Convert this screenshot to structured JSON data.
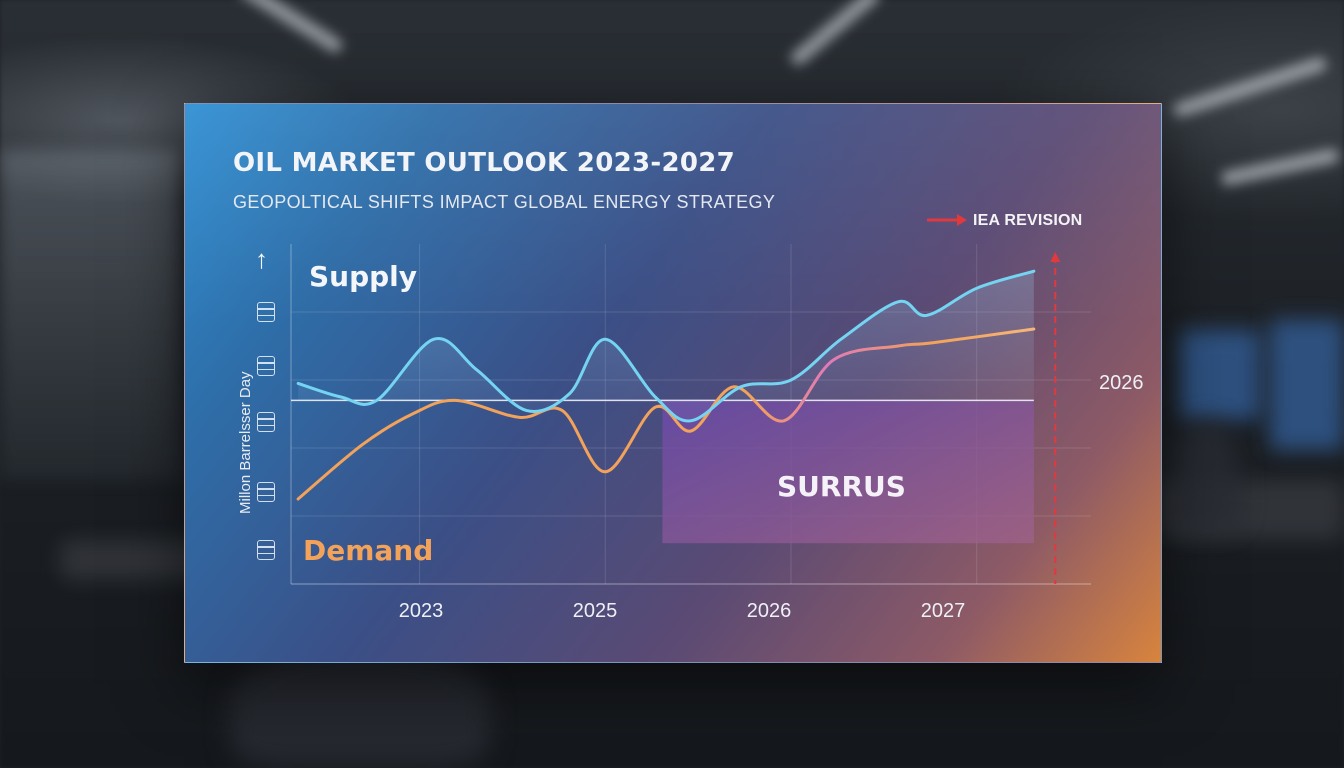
{
  "chart_data": {
    "type": "line",
    "title": "OIL MARKET OUTLOOK 2023-2027",
    "subtitle": "GEOPOLTICAL SHIFTS IMPACT GLOBAL ENERGY STRATEGY",
    "ylabel": "Millon Barrelsser Day",
    "x_tick_labels": [
      "2023",
      "2025",
      "2026",
      "2027"
    ],
    "x_range": [
      2022.4,
      2028.0
    ],
    "ylim": [
      0,
      100
    ],
    "grid": true,
    "series": [
      {
        "name": "Supply",
        "color": "#74d4f2",
        "points": [
          [
            2022.45,
            59
          ],
          [
            2022.75,
            55
          ],
          [
            2023.0,
            54
          ],
          [
            2023.4,
            72
          ],
          [
            2023.7,
            63
          ],
          [
            2024.05,
            51
          ],
          [
            2024.35,
            56
          ],
          [
            2024.6,
            72
          ],
          [
            2024.95,
            55
          ],
          [
            2025.2,
            48
          ],
          [
            2025.55,
            58
          ],
          [
            2025.9,
            60
          ],
          [
            2026.25,
            72
          ],
          [
            2026.65,
            83
          ],
          [
            2026.85,
            79
          ],
          [
            2027.2,
            87
          ],
          [
            2027.6,
            92
          ]
        ]
      },
      {
        "name": "Demand",
        "color": "#f2a25a",
        "points": [
          [
            2022.45,
            25
          ],
          [
            2022.9,
            41
          ],
          [
            2023.25,
            50
          ],
          [
            2023.55,
            54
          ],
          [
            2024.0,
            49
          ],
          [
            2024.3,
            51
          ],
          [
            2024.6,
            33
          ],
          [
            2024.95,
            52
          ],
          [
            2025.2,
            45
          ],
          [
            2025.5,
            58
          ],
          [
            2025.85,
            48
          ],
          [
            2026.2,
            66
          ],
          [
            2026.65,
            70
          ],
          [
            2026.9,
            71
          ],
          [
            2027.6,
            75
          ]
        ]
      }
    ],
    "baseline": 54,
    "baseline_color": "#eef2f8",
    "annotations": [
      {
        "text": "SURRUS",
        "region": {
          "x": [
            2025.0,
            2027.6
          ],
          "y": [
            12,
            54
          ]
        },
        "color": "#7a52a8"
      },
      {
        "text": "IEA REVISION",
        "type": "legend-arrow",
        "color": "#e0393e",
        "placement": "top-right"
      },
      {
        "text": "2026",
        "type": "revision-marker",
        "x": 2027.75,
        "color": "#e0393e"
      }
    ],
    "series_labels": {
      "supply": "Supply",
      "demand": "Demand"
    },
    "legend": "top-right"
  }
}
